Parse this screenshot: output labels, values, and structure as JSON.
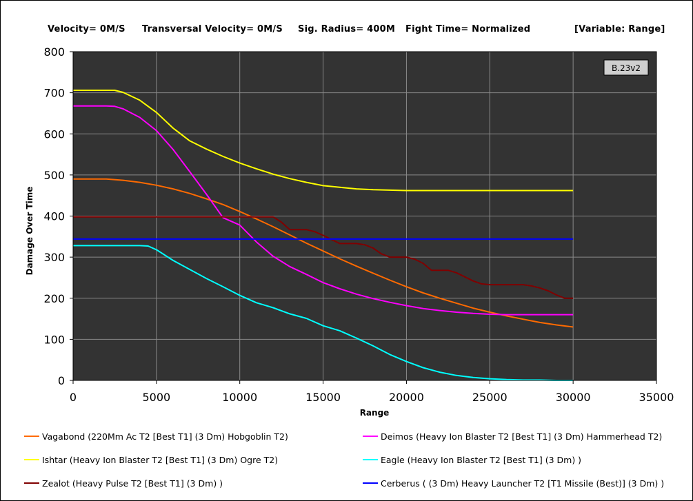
{
  "header": {
    "velocity": "Velocity= 0M/S",
    "transversal": "Transversal Velocity= 0M/S",
    "sig_radius": "Sig. Radius= 400M",
    "fight_time": "Fight Time= Normalized",
    "variable": "[Variable: Range]"
  },
  "version_label": "B.23v2",
  "colors": {
    "plot_bg": "#333333",
    "grid": "#8a8a8a"
  },
  "chart_data": {
    "type": "line",
    "xlabel": "Range",
    "ylabel": "Damage Over Time",
    "xlim": [
      0,
      35000
    ],
    "ylim": [
      0,
      800
    ],
    "xticks": [
      0,
      5000,
      10000,
      15000,
      20000,
      25000,
      30000,
      35000
    ],
    "yticks": [
      0,
      100,
      200,
      300,
      400,
      500,
      600,
      700,
      800
    ],
    "grid": true,
    "legend_position": "bottom",
    "series": [
      {
        "name": "Vagabond (220Mm Ac T2 [Best T1] (3 Dm) Hobgoblin T2)",
        "color": "#ff6a00",
        "x": [
          0,
          2000,
          3000,
          4000,
          5000,
          6000,
          7000,
          8000,
          9000,
          10000,
          11000,
          12000,
          13000,
          14000,
          15000,
          16000,
          17000,
          18000,
          19000,
          20000,
          21000,
          22000,
          23000,
          24000,
          25000,
          26000,
          27000,
          28000,
          29000,
          30000
        ],
        "y": [
          490,
          490,
          487,
          482,
          475,
          466,
          455,
          442,
          428,
          411,
          393,
          374,
          354,
          334,
          315,
          296,
          278,
          261,
          244,
          228,
          213,
          200,
          188,
          176,
          166,
          157,
          149,
          141,
          135,
          130
        ]
      },
      {
        "name": "Deimos (Heavy Ion Blaster T2 [Best T1] (3 Dm) Hammerhead T2)",
        "color": "#ff00ff",
        "x": [
          0,
          2000,
          2500,
          3000,
          4000,
          5000,
          6000,
          7000,
          8000,
          9000,
          10000,
          11000,
          12000,
          13000,
          14000,
          15000,
          16000,
          17000,
          18000,
          19000,
          20000,
          21000,
          22000,
          23000,
          24000,
          25000,
          26000,
          30000
        ],
        "y": [
          668,
          668,
          667,
          661,
          640,
          608,
          562,
          508,
          453,
          396,
          378,
          337,
          302,
          277,
          258,
          238,
          223,
          210,
          199,
          190,
          182,
          175,
          170,
          166,
          163,
          161,
          160,
          160
        ]
      },
      {
        "name": "Ishtar (Heavy Ion Blaster T2 [Best T1] (3 Dm) Ogre T2)",
        "color": "#ffff00",
        "x": [
          0,
          2000,
          2500,
          3000,
          4000,
          5000,
          6000,
          7000,
          8000,
          9000,
          10000,
          11000,
          12000,
          13000,
          14000,
          15000,
          16000,
          17000,
          18000,
          19000,
          20000,
          25000,
          30000
        ],
        "y": [
          706,
          706,
          706,
          701,
          682,
          652,
          614,
          583,
          563,
          545,
          529,
          515,
          502,
          491,
          482,
          474,
          470,
          466,
          464,
          463,
          462,
          462,
          462
        ]
      },
      {
        "name": "Eagle (Heavy Ion Blaster T2 [Best T1] (3 Dm) )",
        "color": "#00ffff",
        "x": [
          0,
          1000,
          2000,
          3000,
          4000,
          4500,
          5000,
          6000,
          7000,
          8000,
          9000,
          10000,
          11000,
          12000,
          13000,
          14000,
          15000,
          16000,
          17000,
          18000,
          19000,
          20000,
          21000,
          22000,
          23000,
          24000,
          25000,
          26000,
          27000,
          28000,
          29000,
          30000
        ],
        "y": [
          328,
          328,
          328,
          328,
          328,
          327,
          318,
          292,
          270,
          248,
          228,
          207,
          189,
          177,
          162,
          151,
          133,
          121,
          103,
          84,
          63,
          46,
          31,
          20,
          12,
          7,
          4,
          2,
          1,
          1,
          0,
          0
        ]
      },
      {
        "name": "Zealot (Heavy Pulse T2 [Best T1] (3 Dm) )",
        "color": "#800000",
        "x": [
          0,
          12000,
          12500,
          13000,
          14000,
          14500,
          15000,
          15500,
          16000,
          17000,
          17500,
          18000,
          18500,
          19000,
          20000,
          20500,
          21000,
          21500,
          22500,
          23000,
          23500,
          24000,
          24500,
          25000,
          27000,
          27500,
          28000,
          28500,
          29000,
          29500,
          30000
        ],
        "y": [
          398,
          398,
          385,
          367,
          367,
          362,
          353,
          343,
          333,
          333,
          330,
          322,
          308,
          300,
          300,
          295,
          285,
          268,
          268,
          262,
          252,
          242,
          235,
          233,
          233,
          230,
          225,
          218,
          208,
          200,
          200
        ]
      },
      {
        "name": "Cerberus ( (3 Dm) Heavy Launcher T2 [T1 Missile (Best)] (3 Dm) )",
        "color": "#0000ff",
        "x": [
          0,
          30000
        ],
        "y": [
          344,
          344
        ]
      }
    ]
  }
}
